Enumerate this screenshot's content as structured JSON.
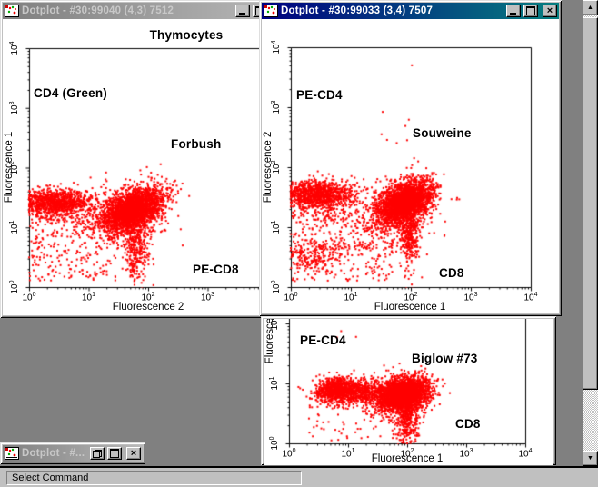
{
  "windows": {
    "window1": {
      "title": "Dotplot - #30:99040 (4,3) 7512",
      "state": "inactive"
    },
    "window2": {
      "title": "Dotplot - #30:99033 (3,4) 7507",
      "state": "active"
    },
    "minimized_window": {
      "title": "Dotplot - #...",
      "state": "inactive"
    }
  },
  "statusbar": {
    "text": "Select Command"
  },
  "icons": {
    "close_glyph": "×",
    "scroll_up_glyph": "▲",
    "scroll_down_glyph": "▼"
  },
  "colors": {
    "desktop": "#808080",
    "titlebar_active_start": "#000080",
    "titlebar_active_end": "#008080",
    "window_face": "#c0c0c0",
    "plot_background": "#ffffff",
    "dot_color": "#ff0000"
  },
  "chart_data": [
    {
      "type": "scatter",
      "panel_title": "Thymocytes",
      "label_y_marker": "CD4 (Green)",
      "label_sample": "Forbush",
      "label_x_marker": "PE-CD8",
      "xlabel": "Fluorescence 2",
      "ylabel": "Fluorescence 1",
      "x_scale": "log10",
      "y_scale": "log10",
      "xlim": [
        1,
        10000
      ],
      "ylim": [
        1,
        10000
      ],
      "xtick_exponents": [
        0,
        1,
        2,
        3
      ],
      "ytick_exponents": [
        0,
        1,
        2,
        3,
        4
      ],
      "point_color": "#ff0000",
      "populations": [
        {
          "name": "cd4-positive-left-cluster",
          "cx": 0.42,
          "cy": 1.42,
          "sx": 0.3,
          "sy": 0.1,
          "n": 900
        },
        {
          "name": "cd4-positive-halo",
          "cx": 0.5,
          "cy": 1.35,
          "sx": 0.33,
          "sy": 0.18,
          "n": 280
        },
        {
          "name": "double-positive-main",
          "cx": 1.75,
          "cy": 1.3,
          "sx": 0.25,
          "sy": 0.16,
          "corr": 0.55,
          "n": 2400
        },
        {
          "name": "double-positive-halo",
          "cx": 1.65,
          "cy": 1.2,
          "sx": 0.33,
          "sy": 0.25,
          "n": 420
        },
        {
          "name": "cd8-tail-down",
          "cx": 1.8,
          "cy": 0.65,
          "sx": 0.1,
          "sy": 0.3,
          "n": 330
        },
        {
          "name": "sparse-low",
          "uniform": true,
          "x0": 0.0,
          "x1": 1.5,
          "y0": 0.1,
          "y1": 1.3,
          "n": 270
        },
        {
          "name": "stray-high",
          "uniform": true,
          "x0": 1.0,
          "x1": 1.3,
          "y0": 1.8,
          "y1": 1.95,
          "n": 2
        }
      ]
    },
    {
      "type": "scatter",
      "panel_title": "",
      "label_y_marker": "PE-CD4",
      "label_sample": "Souweine",
      "label_x_marker": "CD8",
      "xlabel": "Fluorescence 1",
      "ylabel": "Fluorescence 2",
      "x_scale": "log10",
      "y_scale": "log10",
      "xlim": [
        1,
        10000
      ],
      "ylim": [
        1,
        10000
      ],
      "xtick_exponents": [
        0,
        1,
        2,
        3,
        4
      ],
      "ytick_exponents": [
        0,
        1,
        2,
        3,
        4
      ],
      "point_color": "#ff0000",
      "populations": [
        {
          "name": "cd4-positive-left-cluster",
          "cx": 0.42,
          "cy": 1.55,
          "sx": 0.3,
          "sy": 0.1,
          "n": 950
        },
        {
          "name": "cd4-positive-halo",
          "cx": 0.5,
          "cy": 1.45,
          "sx": 0.33,
          "sy": 0.18,
          "n": 280
        },
        {
          "name": "low-left-cluster",
          "cx": 0.35,
          "cy": 0.5,
          "sx": 0.22,
          "sy": 0.13,
          "n": 170
        },
        {
          "name": "double-positive-main",
          "cx": 1.9,
          "cy": 1.42,
          "sx": 0.22,
          "sy": 0.16,
          "corr": 0.55,
          "n": 2500
        },
        {
          "name": "double-positive-halo",
          "cx": 1.75,
          "cy": 1.3,
          "sx": 0.33,
          "sy": 0.24,
          "n": 430
        },
        {
          "name": "cd8-tail-down",
          "cx": 1.98,
          "cy": 0.85,
          "sx": 0.09,
          "sy": 0.28,
          "n": 380
        },
        {
          "name": "sparse-low",
          "uniform": true,
          "x0": 0.0,
          "x1": 1.7,
          "y0": 0.1,
          "y1": 1.25,
          "n": 300
        },
        {
          "name": "mid-band",
          "uniform": true,
          "x0": 0.4,
          "x1": 1.7,
          "y0": 0.6,
          "y1": 0.78,
          "n": 60
        },
        {
          "name": "stray-high",
          "uniform": true,
          "x0": 1.5,
          "x1": 2.15,
          "y0": 2.2,
          "y1": 2.95,
          "n": 7
        },
        {
          "name": "single-outlier",
          "cx": 2.02,
          "cy": 3.7,
          "sx": 0.005,
          "sy": 0.005,
          "n": 1
        }
      ]
    },
    {
      "type": "scatter",
      "panel_title": "",
      "label_y_marker": "PE-CD4",
      "label_sample": "Biglow #73",
      "label_x_marker": "CD8",
      "xlabel": "Fluorescence 1",
      "ylabel": "Fluorescence 2",
      "x_scale": "log10",
      "y_scale": "log10",
      "xlim": [
        1,
        10000
      ],
      "ylim": [
        1,
        10000
      ],
      "xtick_exponents": [
        0,
        1,
        2,
        3,
        4
      ],
      "ytick_exponents": [
        0,
        1,
        2
      ],
      "point_color": "#ff0000",
      "populations": [
        {
          "name": "left-cluster",
          "cx": 0.85,
          "cy": 0.88,
          "sx": 0.2,
          "sy": 0.1,
          "n": 1000
        },
        {
          "name": "bridge",
          "cx": 1.35,
          "cy": 0.85,
          "sx": 0.25,
          "sy": 0.1,
          "n": 400
        },
        {
          "name": "main-cluster",
          "cx": 1.95,
          "cy": 0.82,
          "sx": 0.2,
          "sy": 0.13,
          "corr": 0.3,
          "n": 2600
        },
        {
          "name": "main-halo",
          "cx": 1.8,
          "cy": 0.8,
          "sx": 0.3,
          "sy": 0.18,
          "n": 400
        },
        {
          "name": "tail-down",
          "cx": 2.0,
          "cy": 0.38,
          "sx": 0.09,
          "sy": 0.22,
          "n": 330
        },
        {
          "name": "sparse-low",
          "uniform": true,
          "x0": 0.3,
          "x1": 2.3,
          "y0": 0.05,
          "y1": 0.75,
          "n": 100
        },
        {
          "name": "stray-high",
          "uniform": true,
          "x0": 0.8,
          "x1": 1.35,
          "y0": 1.75,
          "y1": 2.05,
          "n": 3
        }
      ]
    }
  ]
}
